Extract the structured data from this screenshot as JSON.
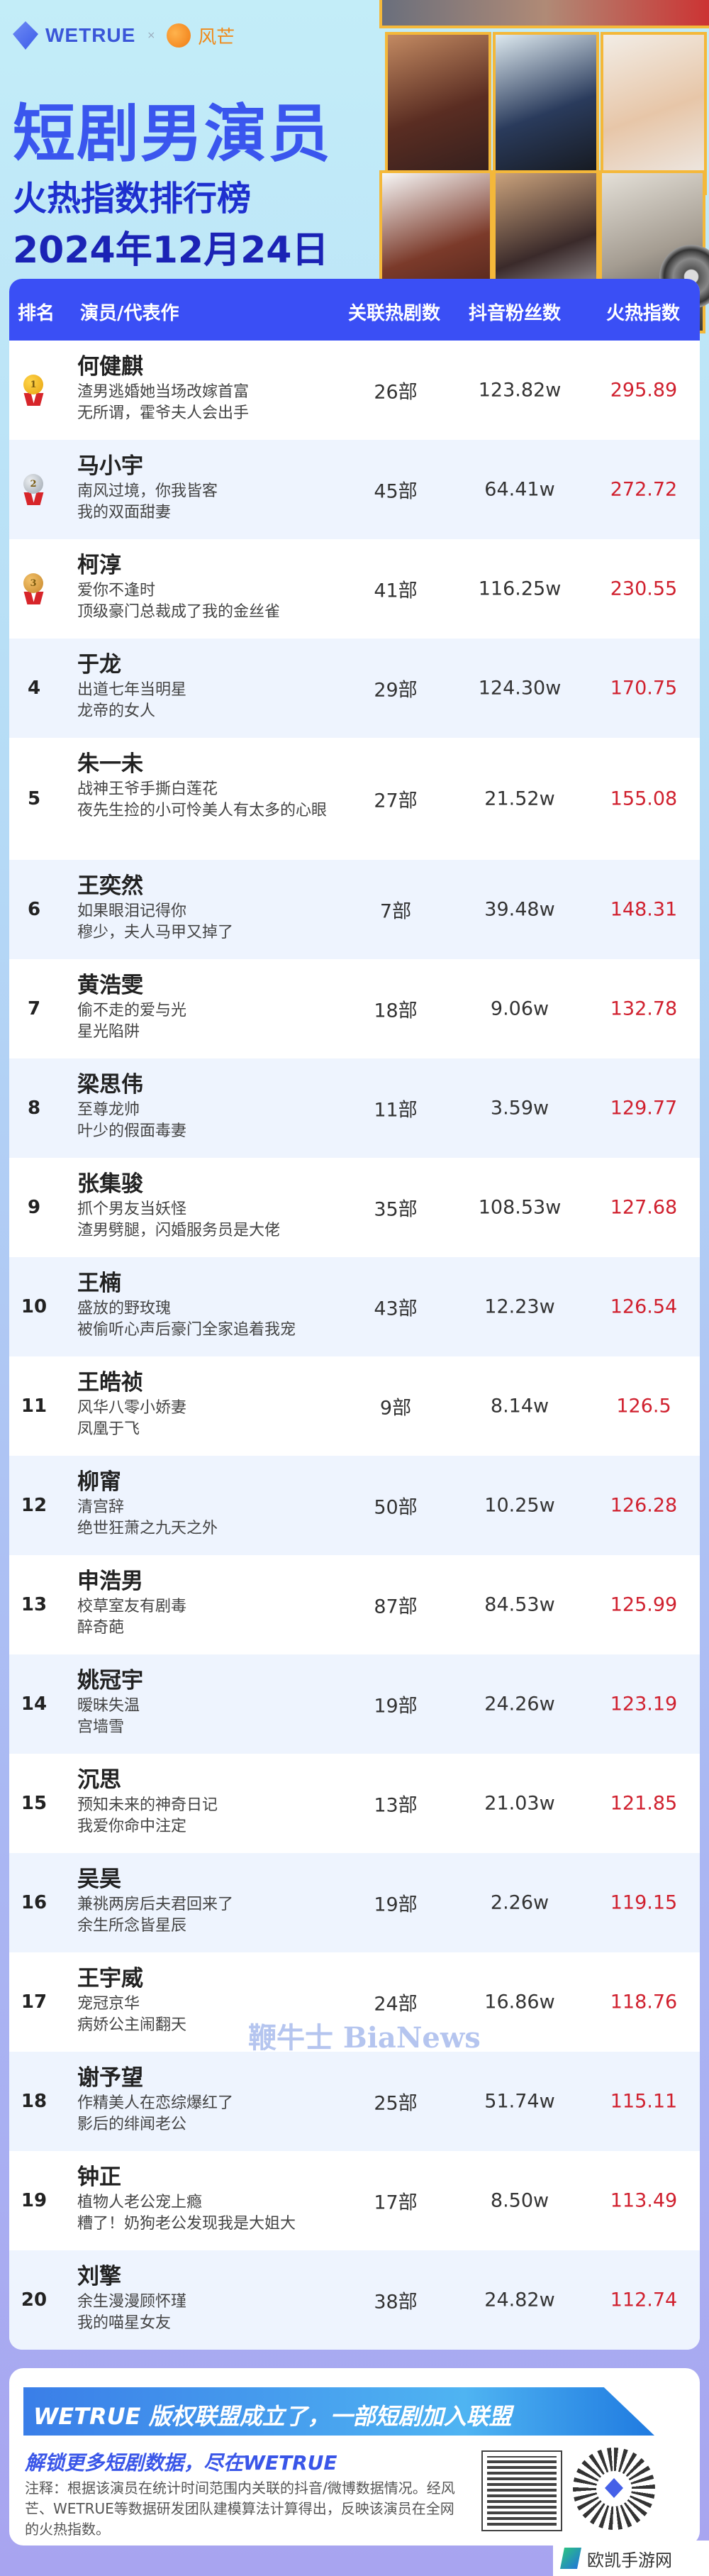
{
  "header": {
    "brand1": "WETRUE",
    "separator": "×",
    "brand2": "风芒",
    "title": "短剧男演员",
    "subtitle": "火热指数排行榜",
    "date": "2024年12月24日"
  },
  "table": {
    "columns": [
      "排名",
      "演员/代表作",
      "关联热剧数",
      "抖音粉丝数",
      "火热指数"
    ],
    "rows": [
      {
        "rank": "1",
        "name": "何健麒",
        "works": [
          "渣男逃婚她当场改嫁首富",
          "无所谓，霍爷夫人会出手"
        ],
        "dramas": "26部",
        "fans": "123.82w",
        "heat": "295.89",
        "medal": "gold"
      },
      {
        "rank": "2",
        "name": "马小宇",
        "works": [
          "南风过境，你我皆客",
          "我的双面甜妻"
        ],
        "dramas": "45部",
        "fans": "64.41w",
        "heat": "272.72",
        "medal": "silver"
      },
      {
        "rank": "3",
        "name": "柯淳",
        "works": [
          "爱你不逢时",
          "顶级豪门总裁成了我的金丝雀"
        ],
        "dramas": "41部",
        "fans": "116.25w",
        "heat": "230.55",
        "medal": "bronze"
      },
      {
        "rank": "4",
        "name": "于龙",
        "works": [
          "出道七年当明星",
          "龙帝的女人"
        ],
        "dramas": "29部",
        "fans": "124.30w",
        "heat": "170.75"
      },
      {
        "rank": "5",
        "name": "朱一未",
        "works": [
          "战神王爷手撕白莲花",
          "夜先生捡的小可怜美人有太多的心眼"
        ],
        "dramas": "27部",
        "fans": "21.52w",
        "heat": "155.08"
      },
      {
        "rank": "6",
        "name": "王奕然",
        "works": [
          "如果眼泪记得你",
          "穆少，夫人马甲又掉了"
        ],
        "dramas": "7部",
        "fans": "39.48w",
        "heat": "148.31"
      },
      {
        "rank": "7",
        "name": "黄浩雯",
        "works": [
          "偷不走的爱与光",
          "星光陷阱"
        ],
        "dramas": "18部",
        "fans": "9.06w",
        "heat": "132.78"
      },
      {
        "rank": "8",
        "name": "梁思伟",
        "works": [
          "至尊龙帅",
          "叶少的假面毒妻"
        ],
        "dramas": "11部",
        "fans": "3.59w",
        "heat": "129.77"
      },
      {
        "rank": "9",
        "name": "张集骏",
        "works": [
          "抓个男友当妖怪",
          "渣男劈腿，闪婚服务员是大佬"
        ],
        "dramas": "35部",
        "fans": "108.53w",
        "heat": "127.68"
      },
      {
        "rank": "10",
        "name": "王楠",
        "works": [
          "盛放的野玫瑰",
          "被偷听心声后豪门全家追着我宠"
        ],
        "dramas": "43部",
        "fans": "12.23w",
        "heat": "126.54"
      },
      {
        "rank": "11",
        "name": "王皓祯",
        "works": [
          "风华八零小娇妻",
          "凤凰于飞"
        ],
        "dramas": "9部",
        "fans": "8.14w",
        "heat": "126.5"
      },
      {
        "rank": "12",
        "name": "柳甯",
        "works": [
          "清宫辞",
          "绝世狂萧之九天之外"
        ],
        "dramas": "50部",
        "fans": "10.25w",
        "heat": "126.28"
      },
      {
        "rank": "13",
        "name": "申浩男",
        "works": [
          "校草室友有剧毒",
          "醉奇葩"
        ],
        "dramas": "87部",
        "fans": "84.53w",
        "heat": "125.99"
      },
      {
        "rank": "14",
        "name": "姚冠宇",
        "works": [
          "暧昧失温",
          "宫墙雪"
        ],
        "dramas": "19部",
        "fans": "24.26w",
        "heat": "123.19"
      },
      {
        "rank": "15",
        "name": "沉思",
        "works": [
          "预知未来的神奇日记",
          "我爱你命中注定"
        ],
        "dramas": "13部",
        "fans": "21.03w",
        "heat": "121.85"
      },
      {
        "rank": "16",
        "name": "吴昊",
        "works": [
          "兼祧两房后夫君回来了",
          "余生所念皆星辰"
        ],
        "dramas": "19部",
        "fans": "2.26w",
        "heat": "119.15"
      },
      {
        "rank": "17",
        "name": "王宇威",
        "works": [
          "宠冠京华",
          "病娇公主闹翻天"
        ],
        "dramas": "24部",
        "fans": "16.86w",
        "heat": "118.76"
      },
      {
        "rank": "18",
        "name": "谢予望",
        "works": [
          "作精美人在恋综爆红了",
          "影后的绯闻老公"
        ],
        "dramas": "25部",
        "fans": "51.74w",
        "heat": "115.11"
      },
      {
        "rank": "19",
        "name": "钟正",
        "works": [
          "植物人老公宠上瘾",
          "糟了！奶狗老公发现我是大姐大"
        ],
        "dramas": "17部",
        "fans": "8.50w",
        "heat": "113.49"
      },
      {
        "rank": "20",
        "name": "刘擎",
        "works": [
          "余生漫漫顾怀瑾",
          "我的喵星女友"
        ],
        "dramas": "38部",
        "fans": "24.82w",
        "heat": "112.74"
      }
    ]
  },
  "watermark": "鞭牛士 BiaNews",
  "footer": {
    "banner": "WETRUE 版权联盟成立了，一部短剧加入联盟",
    "unlock": "解锁更多短剧数据，尽在WETRUE",
    "note": "注释：根据该演员在统计时间范围内关联的抖音/微博数据情况。经风芒、WETRUE等数据研发团队建模算法计算得出，反映该演员在全网的火热指数。"
  },
  "site_watermark": "欧凯手游网",
  "colors": {
    "header_blue": "#3a4ff5",
    "heat_red": "#d0202e",
    "title_blue": "#3a56ee"
  }
}
